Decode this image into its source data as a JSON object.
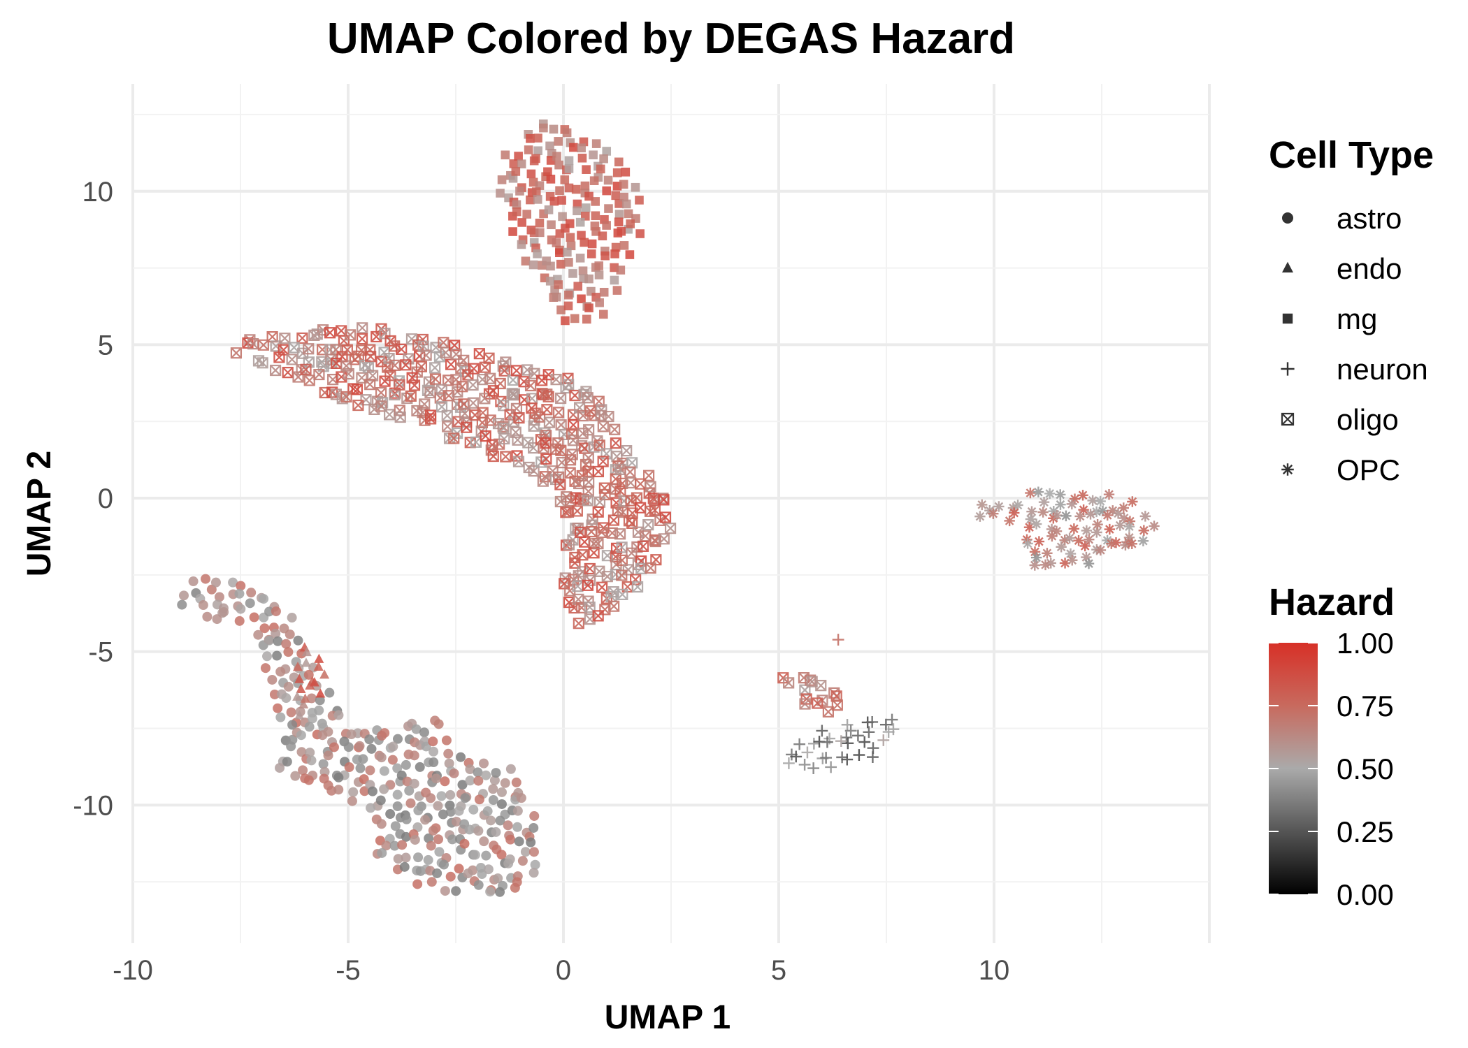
{
  "chart_data": {
    "type": "scatter",
    "title": "UMAP Colored by DEGAS Hazard",
    "xlabel": "UMAP 1",
    "ylabel": "UMAP 2",
    "xlim": [
      -10,
      15
    ],
    "ylim": [
      -14.5,
      13.5
    ],
    "x_ticks": [
      -10,
      -5,
      0,
      5,
      10
    ],
    "y_ticks": [
      -10,
      -5,
      0,
      5,
      10
    ],
    "x_tick_labels": [
      "-10",
      "-5",
      "0",
      "5",
      "10"
    ],
    "y_tick_labels": [
      "-10",
      "-5",
      "0",
      "5",
      "10"
    ],
    "grid": true,
    "shape_legend": {
      "title": "Cell Type",
      "entries": [
        {
          "label": "astro",
          "shape": "circle"
        },
        {
          "label": "endo",
          "shape": "triangle"
        },
        {
          "label": "mg",
          "shape": "square"
        },
        {
          "label": "neuron",
          "shape": "plus"
        },
        {
          "label": "oligo",
          "shape": "square-cross"
        },
        {
          "label": "OPC",
          "shape": "asterisk"
        }
      ],
      "placement": "right"
    },
    "color_legend": {
      "title": "Hazard",
      "range": [
        0,
        1
      ],
      "ticks": [
        0,
        0.25,
        0.5,
        0.75,
        1
      ],
      "tick_labels": [
        "0.00",
        "0.25",
        "0.50",
        "0.75",
        "1.00"
      ],
      "colors": [
        "#000000",
        "#555555",
        "#aaaaaa",
        "#c86a5e",
        "#d73027"
      ],
      "placement": "right"
    },
    "clusters": [
      {
        "cell_type": "mg",
        "hazard_mean": 0.72,
        "points": [
          [
            -0.6,
            12.3
          ],
          [
            0.6,
            11.8
          ],
          [
            1.6,
            10.6
          ],
          [
            1.9,
            9.0
          ],
          [
            1.5,
            7.4
          ],
          [
            1.0,
            6.0
          ],
          [
            0.1,
            5.6
          ],
          [
            -0.4,
            7.0
          ],
          [
            -1.0,
            7.8
          ],
          [
            -1.5,
            9.6
          ],
          [
            -1.5,
            11.0
          ]
        ]
      },
      {
        "cell_type": "oligo",
        "hazard_mean": 0.7,
        "points": [
          [
            -7.6,
            5.1
          ],
          [
            -6.0,
            5.5
          ],
          [
            -4.5,
            5.6
          ],
          [
            -3.0,
            5.2
          ],
          [
            -1.5,
            4.6
          ],
          [
            0.0,
            4.0
          ],
          [
            0.8,
            3.4
          ],
          [
            1.4,
            1.8
          ],
          [
            2.2,
            0.6
          ],
          [
            2.6,
            -0.8
          ],
          [
            2.0,
            -2.6
          ],
          [
            1.2,
            -3.8
          ],
          [
            0.2,
            -4.3
          ],
          [
            -0.1,
            -2.0
          ],
          [
            0.0,
            -0.2
          ],
          [
            -0.8,
            0.8
          ],
          [
            -2.0,
            1.6
          ],
          [
            -3.5,
            2.4
          ],
          [
            -5.0,
            3.0
          ],
          [
            -6.5,
            4.0
          ],
          [
            -7.6,
            4.6
          ]
        ]
      },
      {
        "cell_type": "astro",
        "hazard_mean": 0.55,
        "points": [
          [
            -9.0,
            -3.0
          ],
          [
            -8.4,
            -2.4
          ],
          [
            -7.6,
            -2.6
          ],
          [
            -6.9,
            -3.1
          ],
          [
            -6.2,
            -4.0
          ],
          [
            -5.6,
            -6.0
          ],
          [
            -5.0,
            -7.2
          ],
          [
            -4.0,
            -7.6
          ],
          [
            -3.0,
            -7.0
          ],
          [
            -2.6,
            -8.2
          ],
          [
            -1.2,
            -8.8
          ],
          [
            -0.6,
            -10.0
          ],
          [
            -0.5,
            -12.2
          ],
          [
            -1.2,
            -12.8
          ],
          [
            -2.4,
            -13.0
          ],
          [
            -3.4,
            -12.6
          ],
          [
            -4.4,
            -11.6
          ],
          [
            -4.6,
            -10.0
          ],
          [
            -5.6,
            -9.6
          ],
          [
            -6.6,
            -9.0
          ],
          [
            -6.6,
            -7.4
          ],
          [
            -7.2,
            -4.2
          ],
          [
            -8.2,
            -4.0
          ],
          [
            -9.0,
            -3.6
          ]
        ]
      },
      {
        "cell_type": "endo",
        "hazard_mean": 0.72,
        "points": [
          [
            -6.0,
            -4.8
          ],
          [
            -5.6,
            -5.0
          ],
          [
            -5.5,
            -6.4
          ],
          [
            -6.3,
            -7.4
          ],
          [
            -6.4,
            -6.0
          ]
        ]
      },
      {
        "cell_type": "neuron",
        "hazard_mean": 0.35,
        "points": [
          [
            5.0,
            -8.4
          ],
          [
            5.8,
            -7.6
          ],
          [
            6.8,
            -7.3
          ],
          [
            7.6,
            -7.0
          ],
          [
            7.8,
            -7.6
          ],
          [
            7.4,
            -8.4
          ],
          [
            6.2,
            -8.8
          ],
          [
            5.2,
            -8.8
          ]
        ]
      },
      {
        "cell_type": "oligo",
        "hazard_mean": 0.7,
        "points": [
          [
            5.0,
            -5.8
          ],
          [
            6.0,
            -5.8
          ],
          [
            6.5,
            -6.6
          ],
          [
            6.0,
            -7.2
          ],
          [
            5.5,
            -6.6
          ]
        ]
      },
      {
        "cell_type": "neuron",
        "hazard_mean": 0.6,
        "points": [
          [
            6.2,
            -4.6
          ],
          [
            6.8,
            -4.0
          ],
          [
            6.4,
            -5.0
          ]
        ]
      },
      {
        "cell_type": "OPC",
        "hazard_mean": 0.62,
        "points": [
          [
            9.6,
            -0.2
          ],
          [
            10.8,
            0.2
          ],
          [
            12.2,
            0.4
          ],
          [
            13.4,
            -0.2
          ],
          [
            13.8,
            -1.0
          ],
          [
            13.2,
            -1.8
          ],
          [
            12.0,
            -2.2
          ],
          [
            11.0,
            -2.4
          ],
          [
            10.6,
            -1.0
          ],
          [
            9.6,
            -0.6
          ]
        ]
      }
    ]
  }
}
